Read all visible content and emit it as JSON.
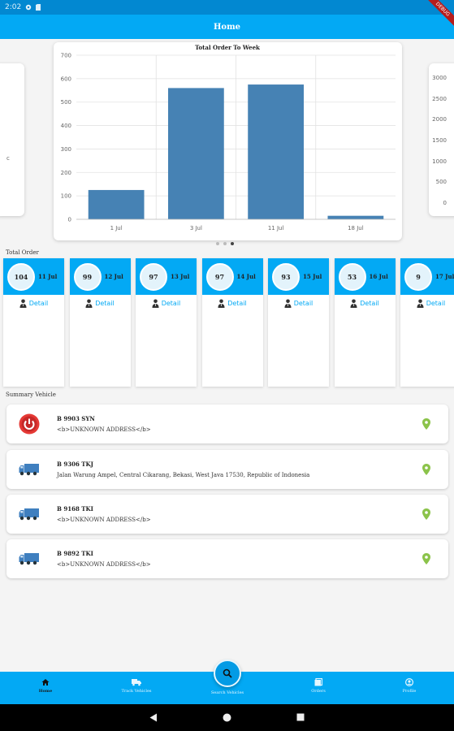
{
  "status_bar": {
    "time": "2:02"
  },
  "app_bar": {
    "title": "Home",
    "debug_label": "DEBUG"
  },
  "chart_data": [
    {
      "type": "bar",
      "title": "Total Order To Week",
      "categories": [
        "1 Jul",
        "3 Jul",
        "11 Jul",
        "18 Jul"
      ],
      "values": [
        125,
        560,
        575,
        15
      ],
      "ylim": [
        0,
        700
      ],
      "yticks": [
        "0",
        "100",
        "200",
        "300",
        "400",
        "500",
        "600",
        "700"
      ],
      "grid": true,
      "color": "#4682b4"
    },
    {
      "type": "bar",
      "partial": true,
      "yticks": [
        "0",
        "500",
        "1000",
        "1500",
        "2000",
        "2500",
        "3000"
      ],
      "ylim": [
        0,
        3000
      ]
    }
  ],
  "carousel": {
    "left_fragment": "c"
  },
  "total_order": {
    "label": "Total Order",
    "detail_label": "Detail",
    "cards": [
      {
        "count": "104",
        "date": "11 Jul"
      },
      {
        "count": "99",
        "date": "12 Jul"
      },
      {
        "count": "97",
        "date": "13 Jul"
      },
      {
        "count": "97",
        "date": "14 Jul"
      },
      {
        "count": "93",
        "date": "15 Jul"
      },
      {
        "count": "53",
        "date": "16 Jul"
      },
      {
        "count": "9",
        "date": "17 Jul"
      }
    ]
  },
  "summary_vehicle": {
    "label": "Summary Vehicle",
    "items": [
      {
        "icon": "power-icon",
        "plate": "B 9903 SYN",
        "address": "<b>UNKNOWN ADDRESS</b>"
      },
      {
        "icon": "truck-icon",
        "plate": "B 9306 TKJ",
        "address": "Jalan Warung Ampel, Central Cikarang, Bekasi, West Java 17530, Republic of Indonesia"
      },
      {
        "icon": "truck-icon",
        "plate": "B 9168 TKI",
        "address": "<b>UNKNOWN ADDRESS</b>"
      },
      {
        "icon": "truck-icon",
        "plate": "B 9892 TKI",
        "address": "<b>UNKNOWN ADDRESS</b>"
      }
    ]
  },
  "bottom_nav": {
    "items": [
      {
        "label": "Home",
        "icon": "home-icon",
        "active": true
      },
      {
        "label": "Track Vehicles",
        "icon": "truck-icon"
      },
      {
        "label": "Orders",
        "icon": "orders-icon"
      },
      {
        "label": "Profile",
        "icon": "profile-icon"
      }
    ],
    "center": {
      "label": "Search Vehicles",
      "icon": "search-icon"
    }
  },
  "colors": {
    "primary": "#03a9f4",
    "bar": "#4682b4",
    "pin": "#8bc34a",
    "power": "#e53935",
    "truck": "#3f7fbf"
  }
}
